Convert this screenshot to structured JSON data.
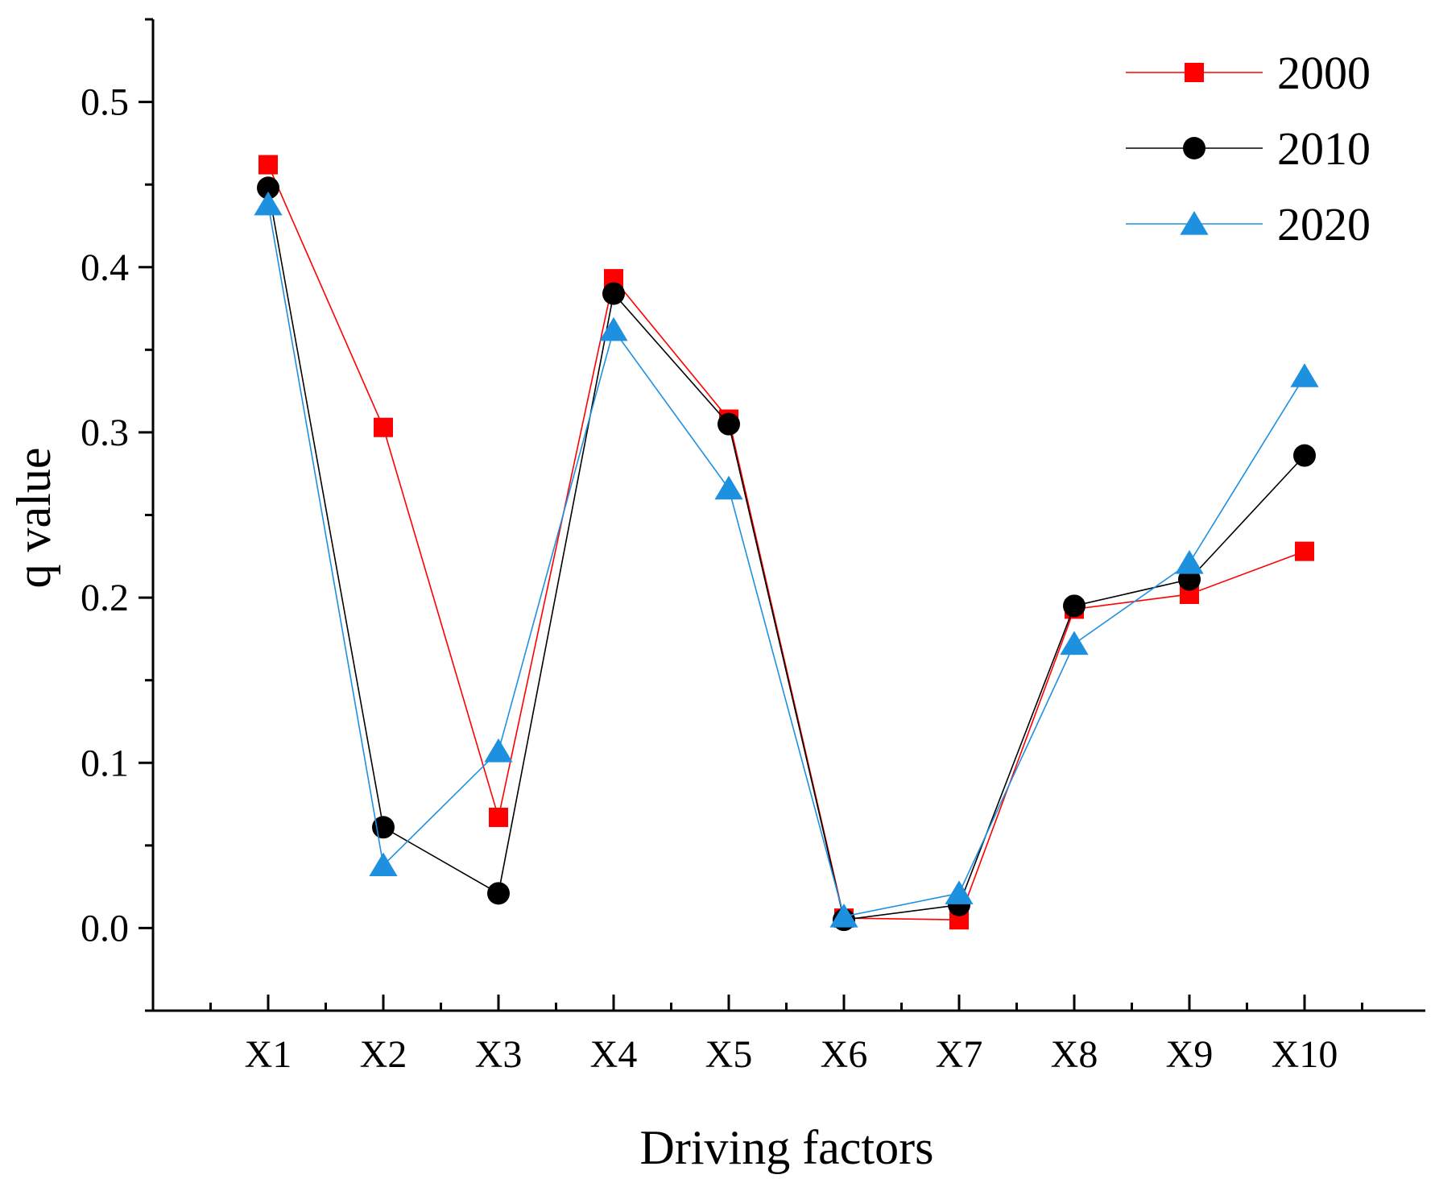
{
  "chart_data": {
    "type": "line",
    "title": "",
    "xlabel": "Driving factors",
    "ylabel": "q value",
    "categories": [
      "X1",
      "X2",
      "X3",
      "X4",
      "X5",
      "X6",
      "X7",
      "X8",
      "X9",
      "X10"
    ],
    "ylim": [
      -0.05,
      0.55
    ],
    "yticks": [
      0.0,
      0.1,
      0.2,
      0.3,
      0.4,
      0.5
    ],
    "ytick_labels": [
      "0.0",
      "0.1",
      "0.2",
      "0.3",
      "0.4",
      "0.5"
    ],
    "legend_position": "top-right",
    "grid": false,
    "series": [
      {
        "name": "2000",
        "color": "#ff0000",
        "marker": "square",
        "values": [
          0.462,
          0.303,
          0.067,
          0.393,
          0.308,
          0.006,
          0.005,
          0.193,
          0.202,
          0.228
        ]
      },
      {
        "name": "2010",
        "color": "#000000",
        "marker": "circle",
        "values": [
          0.448,
          0.061,
          0.021,
          0.384,
          0.305,
          0.005,
          0.014,
          0.195,
          0.211,
          0.286
        ]
      },
      {
        "name": "2020",
        "color": "#1e90e0",
        "marker": "triangle",
        "values": [
          0.438,
          0.038,
          0.107,
          0.362,
          0.266,
          0.007,
          0.021,
          0.172,
          0.221,
          0.334
        ]
      }
    ]
  }
}
